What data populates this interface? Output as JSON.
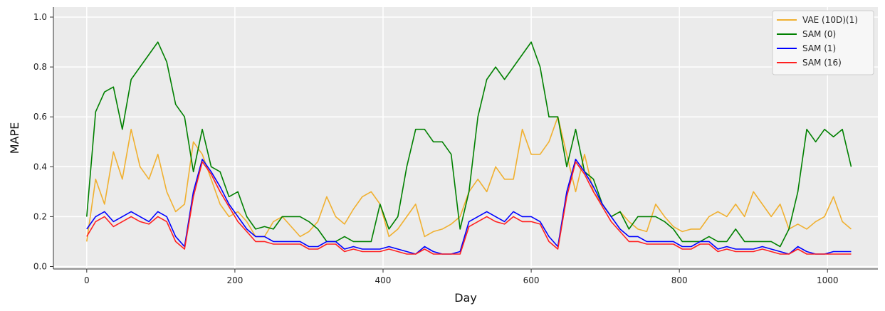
{
  "chart_data": {
    "type": "line",
    "title": "",
    "xlabel": "Day",
    "ylabel": "MAPE",
    "xlim": [
      -45,
      1068
    ],
    "ylim": [
      -0.01,
      1.04
    ],
    "x_ticks": [
      0,
      200,
      400,
      600,
      800,
      1000
    ],
    "y_ticks": [
      0.0,
      0.2,
      0.4,
      0.6,
      0.8,
      1.0
    ],
    "x_tick_labels": [
      "0",
      "200",
      "400",
      "600",
      "800",
      "1000"
    ],
    "y_tick_labels": [
      "0.0",
      "0.2",
      "0.4",
      "0.6",
      "0.8",
      "1.0"
    ],
    "grid": true,
    "legend_position": "top-right",
    "x_step_days": 12,
    "series": [
      {
        "name": "VAE (10D)(1)",
        "color": "#f0b030",
        "values": [
          0.1,
          0.35,
          0.25,
          0.46,
          0.35,
          0.55,
          0.4,
          0.35,
          0.45,
          0.3,
          0.22,
          0.25,
          0.5,
          0.45,
          0.35,
          0.25,
          0.2,
          0.22,
          0.18,
          0.12,
          0.12,
          0.18,
          0.2,
          0.16,
          0.12,
          0.14,
          0.18,
          0.28,
          0.2,
          0.17,
          0.23,
          0.28,
          0.3,
          0.25,
          0.12,
          0.15,
          0.2,
          0.25,
          0.12,
          0.14,
          0.15,
          0.17,
          0.2,
          0.3,
          0.35,
          0.3,
          0.4,
          0.35,
          0.35,
          0.55,
          0.45,
          0.45,
          0.5,
          0.6,
          0.45,
          0.3,
          0.45,
          0.3,
          0.25,
          0.2,
          0.22,
          0.18,
          0.15,
          0.14,
          0.25,
          0.2,
          0.16,
          0.14,
          0.15,
          0.15,
          0.2,
          0.22,
          0.2,
          0.25,
          0.2,
          0.3,
          0.25,
          0.2,
          0.25,
          0.15,
          0.17,
          0.15,
          0.18,
          0.2,
          0.28,
          0.18,
          0.15
        ]
      },
      {
        "name": "SAM (0)",
        "color": "#008000",
        "values": [
          0.2,
          0.62,
          0.7,
          0.72,
          0.55,
          0.75,
          0.8,
          0.85,
          0.9,
          0.82,
          0.65,
          0.6,
          0.38,
          0.55,
          0.4,
          0.38,
          0.28,
          0.3,
          0.2,
          0.15,
          0.16,
          0.15,
          0.2,
          0.2,
          0.2,
          0.18,
          0.15,
          0.1,
          0.1,
          0.12,
          0.1,
          0.1,
          0.1,
          0.25,
          0.15,
          0.2,
          0.4,
          0.55,
          0.55,
          0.5,
          0.5,
          0.45,
          0.15,
          0.3,
          0.6,
          0.75,
          0.8,
          0.75,
          0.8,
          0.85,
          0.9,
          0.8,
          0.6,
          0.6,
          0.4,
          0.55,
          0.38,
          0.35,
          0.25,
          0.2,
          0.22,
          0.15,
          0.2,
          0.2,
          0.2,
          0.18,
          0.15,
          0.1,
          0.1,
          0.1,
          0.12,
          0.1,
          0.1,
          0.15,
          0.1,
          0.1,
          0.1,
          0.1,
          0.08,
          0.15,
          0.3,
          0.55,
          0.5,
          0.55,
          0.52,
          0.55,
          0.4
        ]
      },
      {
        "name": "SAM (1)",
        "color": "#0000ff",
        "values": [
          0.15,
          0.2,
          0.22,
          0.18,
          0.2,
          0.22,
          0.2,
          0.18,
          0.22,
          0.2,
          0.12,
          0.08,
          0.3,
          0.43,
          0.38,
          0.32,
          0.25,
          0.2,
          0.15,
          0.12,
          0.12,
          0.1,
          0.1,
          0.1,
          0.1,
          0.08,
          0.08,
          0.1,
          0.1,
          0.07,
          0.08,
          0.07,
          0.07,
          0.07,
          0.08,
          0.07,
          0.06,
          0.05,
          0.08,
          0.06,
          0.05,
          0.05,
          0.06,
          0.18,
          0.2,
          0.22,
          0.2,
          0.18,
          0.22,
          0.2,
          0.2,
          0.18,
          0.12,
          0.08,
          0.3,
          0.43,
          0.38,
          0.32,
          0.25,
          0.2,
          0.15,
          0.12,
          0.12,
          0.1,
          0.1,
          0.1,
          0.1,
          0.08,
          0.08,
          0.1,
          0.1,
          0.07,
          0.08,
          0.07,
          0.07,
          0.07,
          0.08,
          0.07,
          0.06,
          0.05,
          0.08,
          0.06,
          0.05,
          0.05,
          0.06,
          0.06,
          0.06
        ]
      },
      {
        "name": "SAM (16)",
        "color": "#ff2020",
        "values": [
          0.12,
          0.18,
          0.2,
          0.16,
          0.18,
          0.2,
          0.18,
          0.17,
          0.2,
          0.18,
          0.1,
          0.07,
          0.28,
          0.42,
          0.37,
          0.3,
          0.24,
          0.18,
          0.14,
          0.1,
          0.1,
          0.09,
          0.09,
          0.09,
          0.09,
          0.07,
          0.07,
          0.09,
          0.09,
          0.06,
          0.07,
          0.06,
          0.06,
          0.06,
          0.07,
          0.06,
          0.05,
          0.05,
          0.07,
          0.05,
          0.05,
          0.05,
          0.05,
          0.16,
          0.18,
          0.2,
          0.18,
          0.17,
          0.2,
          0.18,
          0.18,
          0.17,
          0.1,
          0.07,
          0.28,
          0.42,
          0.37,
          0.3,
          0.24,
          0.18,
          0.14,
          0.1,
          0.1,
          0.09,
          0.09,
          0.09,
          0.09,
          0.07,
          0.07,
          0.09,
          0.09,
          0.06,
          0.07,
          0.06,
          0.06,
          0.06,
          0.07,
          0.06,
          0.05,
          0.05,
          0.07,
          0.05,
          0.05,
          0.05,
          0.05,
          0.05,
          0.05
        ]
      }
    ]
  }
}
